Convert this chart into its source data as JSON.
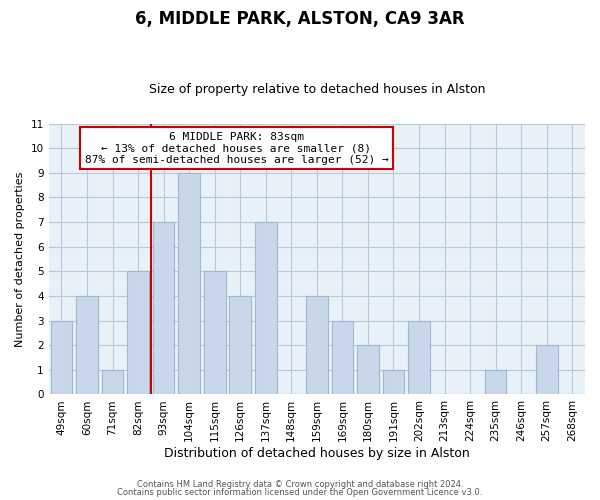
{
  "title": "6, MIDDLE PARK, ALSTON, CA9 3AR",
  "subtitle": "Size of property relative to detached houses in Alston",
  "xlabel": "Distribution of detached houses by size in Alston",
  "ylabel": "Number of detached properties",
  "bar_labels": [
    "49sqm",
    "60sqm",
    "71sqm",
    "82sqm",
    "93sqm",
    "104sqm",
    "115sqm",
    "126sqm",
    "137sqm",
    "148sqm",
    "159sqm",
    "169sqm",
    "180sqm",
    "191sqm",
    "202sqm",
    "213sqm",
    "224sqm",
    "235sqm",
    "246sqm",
    "257sqm",
    "268sqm"
  ],
  "bar_values": [
    3,
    4,
    1,
    5,
    7,
    9,
    5,
    4,
    7,
    0,
    4,
    3,
    2,
    1,
    3,
    0,
    0,
    1,
    0,
    2,
    0
  ],
  "bar_color": "#c8d8ea",
  "bar_edgecolor": "#a0b8cc",
  "axes_bg": "#e8f0f8",
  "ylim": [
    0,
    11
  ],
  "yticks": [
    0,
    1,
    2,
    3,
    4,
    5,
    6,
    7,
    8,
    9,
    10,
    11
  ],
  "annotation_title": "6 MIDDLE PARK: 83sqm",
  "annotation_line1": "← 13% of detached houses are smaller (8)",
  "annotation_line2": "87% of semi-detached houses are larger (52) →",
  "annotation_box_color": "#ffffff",
  "annotation_box_edgecolor": "#cc0000",
  "property_line_x": 3.5,
  "footer1": "Contains HM Land Registry data © Crown copyright and database right 2024.",
  "footer2": "Contains public sector information licensed under the Open Government Licence v3.0.",
  "background_color": "#ffffff",
  "grid_color": "#b8c8d8",
  "title_fontsize": 12,
  "subtitle_fontsize": 9,
  "ylabel_fontsize": 8,
  "xlabel_fontsize": 9,
  "tick_fontsize": 7.5,
  "footer_fontsize": 6,
  "ann_fontsize": 8
}
